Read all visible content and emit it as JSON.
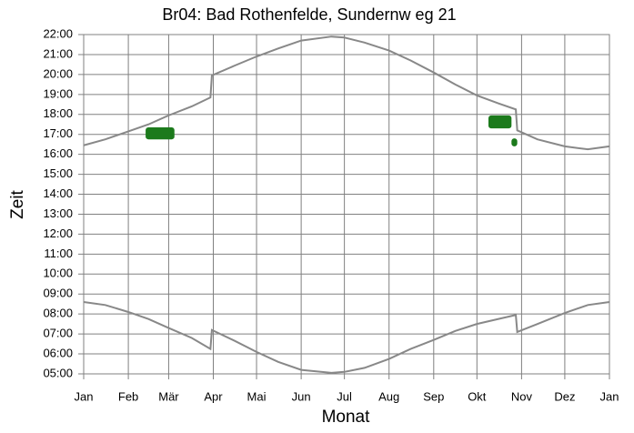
{
  "chart_data": {
    "type": "line",
    "title": "Br04: Bad Rothenfelde, Sundernw eg 21",
    "xlabel": "Monat",
    "ylabel": "Zeit",
    "xlim": [
      0,
      365
    ],
    "xticks": [
      {
        "value": 0,
        "label": "Jan"
      },
      {
        "value": 31,
        "label": "Feb"
      },
      {
        "value": 59,
        "label": "Mär"
      },
      {
        "value": 90,
        "label": "Apr"
      },
      {
        "value": 120,
        "label": "Mai"
      },
      {
        "value": 151,
        "label": "Jun"
      },
      {
        "value": 181,
        "label": "Jul"
      },
      {
        "value": 212,
        "label": "Aug"
      },
      {
        "value": 243,
        "label": "Sep"
      },
      {
        "value": 273,
        "label": "Okt"
      },
      {
        "value": 304,
        "label": "Nov"
      },
      {
        "value": 334,
        "label": "Dez"
      },
      {
        "value": 365,
        "label": "Jan"
      }
    ],
    "ylim": [
      5,
      22
    ],
    "yticks": [
      {
        "value": 5,
        "label": "05:00"
      },
      {
        "value": 6,
        "label": "06:00"
      },
      {
        "value": 7,
        "label": "07:00"
      },
      {
        "value": 8,
        "label": "08:00"
      },
      {
        "value": 9,
        "label": "09:00"
      },
      {
        "value": 10,
        "label": "10:00"
      },
      {
        "value": 11,
        "label": "11:00"
      },
      {
        "value": 12,
        "label": "12:00"
      },
      {
        "value": 13,
        "label": "13:00"
      },
      {
        "value": 14,
        "label": "14:00"
      },
      {
        "value": 15,
        "label": "15:00"
      },
      {
        "value": 16,
        "label": "16:00"
      },
      {
        "value": 17,
        "label": "17:00"
      },
      {
        "value": 18,
        "label": "18:00"
      },
      {
        "value": 19,
        "label": "19:00"
      },
      {
        "value": 20,
        "label": "20:00"
      },
      {
        "value": 21,
        "label": "21:00"
      },
      {
        "value": 22,
        "label": "22:00"
      }
    ],
    "grid": true,
    "series": [
      {
        "color": "#888888",
        "x": [
          0,
          15,
          31,
          45,
          59,
          75,
          88,
          89,
          105,
          120,
          135,
          151,
          172,
          181,
          195,
          212,
          227,
          243,
          258,
          273,
          288,
          300,
          301,
          315,
          334,
          350,
          365
        ],
        "values": [
          16.45,
          16.75,
          17.15,
          17.5,
          17.95,
          18.4,
          18.85,
          19.95,
          20.45,
          20.9,
          21.3,
          21.7,
          21.9,
          21.85,
          21.6,
          21.2,
          20.7,
          20.1,
          19.5,
          18.95,
          18.55,
          18.25,
          17.2,
          16.75,
          16.4,
          16.25,
          16.4
        ]
      },
      {
        "color": "#888888",
        "x": [
          0,
          15,
          31,
          45,
          59,
          75,
          88,
          89,
          105,
          120,
          135,
          151,
          172,
          181,
          195,
          212,
          227,
          243,
          258,
          273,
          288,
          300,
          301,
          315,
          334,
          350,
          365
        ],
        "values": [
          8.6,
          8.45,
          8.1,
          7.75,
          7.3,
          6.8,
          6.25,
          7.2,
          6.65,
          6.1,
          5.6,
          5.2,
          5.05,
          5.1,
          5.3,
          5.75,
          6.25,
          6.7,
          7.15,
          7.5,
          7.75,
          7.95,
          7.1,
          7.5,
          8.05,
          8.45,
          8.6
        ]
      }
    ],
    "shadow_color": "#1c7a1c",
    "shadow_periods": [
      {
        "x": [
          43,
          63
        ],
        "y": [
          16.75,
          17.35
        ]
      },
      {
        "x": [
          281,
          297
        ],
        "y": [
          17.3,
          17.95
        ]
      },
      {
        "x": [
          297,
          301
        ],
        "y": [
          16.4,
          16.8
        ]
      }
    ]
  }
}
